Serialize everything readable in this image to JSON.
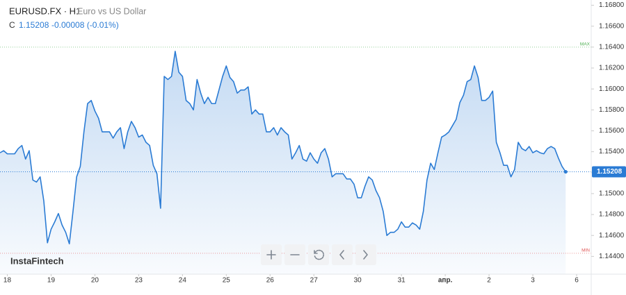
{
  "chart_data": {
    "type": "area",
    "symbol": "EURUSD.FX · H1",
    "subtitle": "Euro vs US Dollar",
    "close_prefix": "C",
    "close": {
      "value": 1.15208,
      "label": "1.15208"
    },
    "change_label": "-0.00008 (-0.01%)",
    "watermark": "InstaFintech",
    "max_line": {
      "value": 1.164,
      "label": "MAX"
    },
    "min_line": {
      "value": 1.1443,
      "label": "MIN"
    },
    "x": [
      0,
      2,
      4,
      6,
      8,
      10,
      12,
      14,
      16,
      18,
      20,
      22,
      24,
      26,
      28,
      30,
      32,
      34,
      36,
      38,
      40,
      42,
      44,
      46,
      48,
      50,
      52,
      54,
      56,
      58,
      60,
      62,
      64,
      66,
      68,
      70,
      72,
      74,
      76,
      78,
      80,
      82,
      84,
      86,
      88,
      90,
      92,
      94,
      96,
      98,
      100,
      102,
      104,
      106,
      108,
      110,
      112,
      114,
      116,
      118,
      120,
      122,
      124,
      126,
      128,
      130,
      132,
      134,
      136,
      138,
      140,
      142,
      144,
      146,
      148,
      150,
      152,
      154,
      156,
      158,
      160,
      162,
      164,
      166,
      168,
      170,
      172,
      174,
      176,
      178,
      180,
      182,
      184,
      186,
      188,
      190,
      192,
      194,
      196,
      198,
      200,
      202,
      204,
      206,
      208,
      210,
      212,
      214,
      216,
      218,
      220,
      222,
      224,
      226,
      228,
      230,
      232,
      234,
      236,
      238,
      240,
      242,
      244,
      246,
      248,
      250,
      252,
      254,
      256,
      258,
      260,
      262,
      264,
      266,
      268,
      270,
      272,
      274,
      276,
      278,
      280,
      282,
      284,
      286,
      288,
      290,
      292,
      294,
      296,
      298,
      300,
      302,
      304,
      306,
      308,
      310
    ],
    "series": [
      {
        "color": "#2a7bd4",
        "values": [
          1.1539,
          1.1541,
          1.1538,
          1.1538,
          1.1538,
          1.1543,
          1.1546,
          1.1533,
          1.1541,
          1.1513,
          1.1511,
          1.1516,
          1.1493,
          1.1453,
          1.1466,
          1.1473,
          1.1481,
          1.147,
          1.1463,
          1.1452,
          1.1483,
          1.1516,
          1.1526,
          1.1559,
          1.1586,
          1.1589,
          1.1579,
          1.1572,
          1.1559,
          1.1559,
          1.1559,
          1.1553,
          1.1559,
          1.1563,
          1.1543,
          1.1559,
          1.1569,
          1.1563,
          1.1554,
          1.1556,
          1.1549,
          1.1546,
          1.1527,
          1.1519,
          1.1486,
          1.1612,
          1.1609,
          1.1612,
          1.1636,
          1.1616,
          1.1612,
          1.1589,
          1.1586,
          1.158,
          1.1609,
          1.1596,
          1.1586,
          1.1592,
          1.1586,
          1.1586,
          1.1599,
          1.1612,
          1.1622,
          1.1611,
          1.1607,
          1.1596,
          1.1599,
          1.1599,
          1.1602,
          1.1576,
          1.158,
          1.1576,
          1.1576,
          1.1559,
          1.1559,
          1.1563,
          1.1556,
          1.1563,
          1.1559,
          1.1556,
          1.1533,
          1.1539,
          1.1546,
          1.1533,
          1.1531,
          1.1539,
          1.1533,
          1.1529,
          1.1539,
          1.1543,
          1.1533,
          1.1516,
          1.1519,
          1.1519,
          1.1519,
          1.1514,
          1.1514,
          1.1509,
          1.1496,
          1.1496,
          1.1507,
          1.1516,
          1.1513,
          1.1503,
          1.1496,
          1.1483,
          1.146,
          1.1463,
          1.1463,
          1.1466,
          1.1473,
          1.1468,
          1.1468,
          1.1472,
          1.147,
          1.1466,
          1.1483,
          1.1513,
          1.1529,
          1.1523,
          1.1539,
          1.1554,
          1.1556,
          1.1559,
          1.1565,
          1.1571,
          1.1587,
          1.1594,
          1.1607,
          1.1609,
          1.1622,
          1.1611,
          1.1589,
          1.1589,
          1.1592,
          1.1598,
          1.1549,
          1.1539,
          1.1527,
          1.1527,
          1.1516,
          1.1523,
          1.1549,
          1.1543,
          1.1541,
          1.1545,
          1.1539,
          1.1541,
          1.1539,
          1.1538,
          1.1543,
          1.1545,
          1.1543,
          1.1534,
          1.1526,
          1.15208
        ]
      }
    ],
    "xlim": [
      0,
      324
    ],
    "xticks": [
      {
        "value": 4,
        "label": "18"
      },
      {
        "value": 28,
        "label": "19"
      },
      {
        "value": 52,
        "label": "20"
      },
      {
        "value": 76,
        "label": "23"
      },
      {
        "value": 100,
        "label": "24"
      },
      {
        "value": 124,
        "label": "25"
      },
      {
        "value": 148,
        "label": "26"
      },
      {
        "value": 172,
        "label": "27"
      },
      {
        "value": 196,
        "label": "30"
      },
      {
        "value": 220,
        "label": "31"
      },
      {
        "value": 244,
        "label": "апр."
      },
      {
        "value": 268,
        "label": "2"
      },
      {
        "value": 292,
        "label": "3"
      },
      {
        "value": 316,
        "label": "6"
      }
    ],
    "ylim": [
      1.1423,
      1.1685
    ],
    "yticks": [
      {
        "value": 1.168,
        "label": "1.16800"
      },
      {
        "value": 1.166,
        "label": "1.16600"
      },
      {
        "value": 1.164,
        "label": "1.16400"
      },
      {
        "value": 1.162,
        "label": "1.16200"
      },
      {
        "value": 1.16,
        "label": "1.16000"
      },
      {
        "value": 1.158,
        "label": "1.15800"
      },
      {
        "value": 1.156,
        "label": "1.15600"
      },
      {
        "value": 1.154,
        "label": "1.15400"
      },
      {
        "value": 1.152,
        "label": "1.15200"
      },
      {
        "value": 1.15,
        "label": "1.15000"
      },
      {
        "value": 1.148,
        "label": "1.14800"
      },
      {
        "value": 1.146,
        "label": "1.14600"
      },
      {
        "value": 1.144,
        "label": "1.14400"
      }
    ],
    "grid": false
  }
}
